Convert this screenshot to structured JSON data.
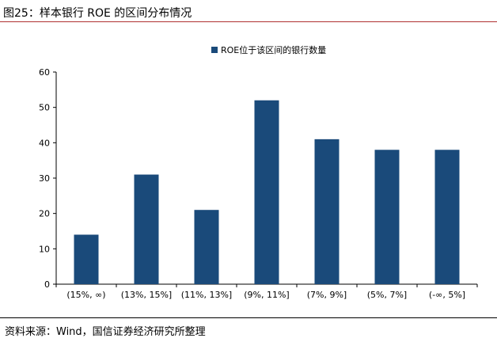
{
  "figure_title": "图25：样本银行 ROE 的区间分布情况",
  "source_note": "资料来源：Wind，国信证券经济研究所整理",
  "colors": {
    "bar": "#1a4a7a",
    "axis": "#000000",
    "top_rule": "#b03030"
  },
  "chart_data": {
    "type": "bar",
    "title": "",
    "xlabel": "",
    "ylabel": "",
    "categories": [
      "(15%, ∞)",
      "(13%, 15%]",
      "(11%, 13%]",
      "(9%, 11%]",
      "(7%, 9%]",
      "(5%, 7%]",
      "(-∞, 5%]"
    ],
    "series": [
      {
        "name": "ROE位于该区间的银行数量",
        "values": [
          14,
          31,
          21,
          52,
          41,
          38,
          38
        ]
      }
    ],
    "ylim": [
      0,
      60
    ],
    "yticks": [
      0,
      10,
      20,
      30,
      40,
      50,
      60
    ],
    "grid": false,
    "legend_position": "top"
  }
}
